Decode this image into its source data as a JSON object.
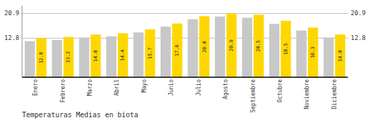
{
  "chart_data": {
    "type": "bar",
    "title": "Temperaturas Medias en biota",
    "categories": [
      "Enero",
      "Febrero",
      "Marzo",
      "Abril",
      "Mayo",
      "Junio",
      "Julio",
      "Agosto",
      "Septiembre",
      "Octubre",
      "Noviembre",
      "Diciembre"
    ],
    "series": [
      {
        "color": "#C8C8C8",
        "values": [
          11.8,
          12.2,
          13.0,
          13.4,
          14.7,
          16.6,
          19.0,
          19.9,
          19.5,
          17.5,
          15.3,
          13.0
        ]
      },
      {
        "color": "#FFD700",
        "values": [
          12.8,
          13.2,
          14.0,
          14.4,
          15.7,
          17.6,
          20.0,
          20.9,
          20.5,
          18.5,
          16.3,
          14.0
        ],
        "value_labels": [
          "12.8",
          "13.2",
          "14.0",
          "14.4",
          "15.7",
          "17.6",
          "20.0",
          "20.9",
          "20.5",
          "18.5",
          "16.3",
          "14.0"
        ],
        "data_labels": true
      }
    ],
    "ylim": [
      0.0,
      23.5
    ],
    "yticks": [
      12.8,
      20.9
    ],
    "grid": true
  }
}
